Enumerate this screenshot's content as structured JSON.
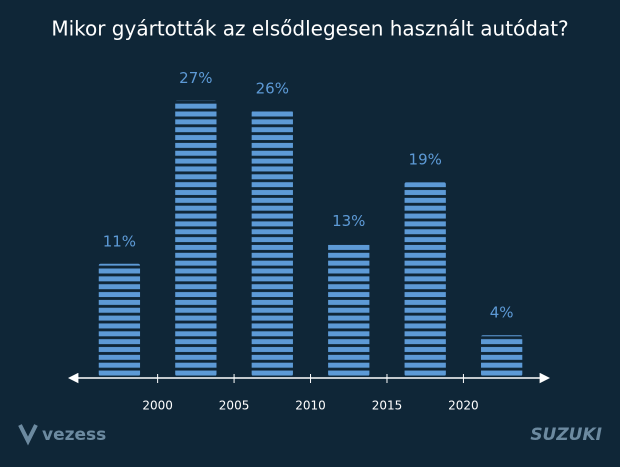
{
  "chart_data": {
    "type": "histogram",
    "title": "Mikor gyártották az elsődlegesen használt autódat?",
    "bins": [
      1995,
      2000,
      2005,
      2010,
      2015,
      2020,
      2025
    ],
    "values": [
      11,
      27,
      26,
      13,
      19,
      4
    ],
    "value_labels": [
      "11%",
      "27%",
      "26%",
      "13%",
      "19%",
      "4%"
    ],
    "color": "#5d9ad6",
    "xlim": [
      1994.4,
      2025.4
    ],
    "xticks": [
      2000,
      2005,
      2010,
      2015,
      2020
    ],
    "ylim": [
      0,
      30
    ],
    "grid": false
  },
  "logos": [
    "vezess",
    "SUZUKI"
  ]
}
